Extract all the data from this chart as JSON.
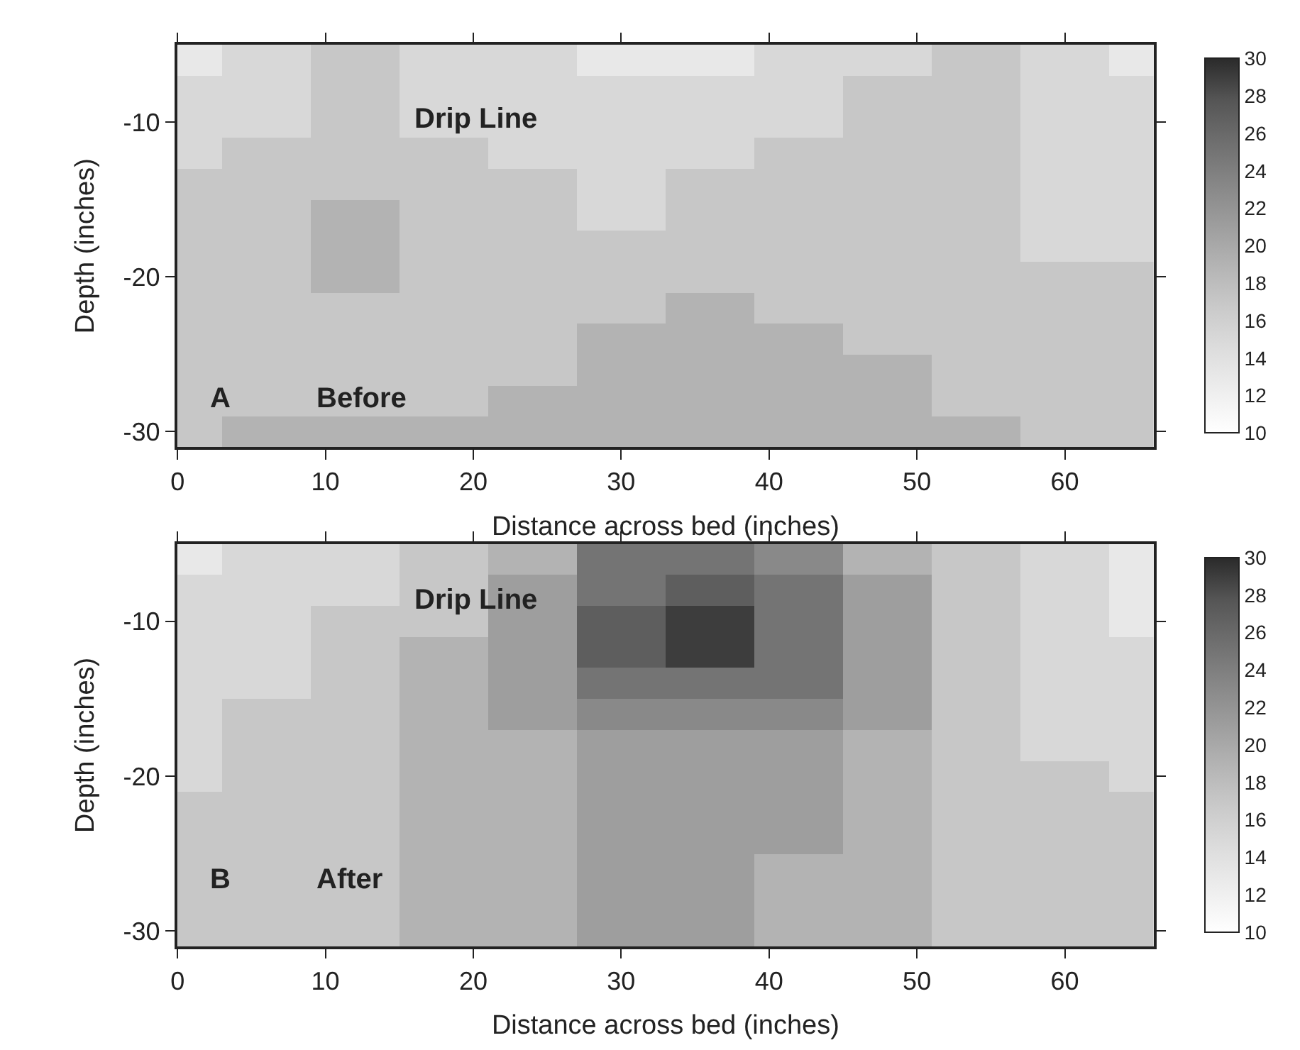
{
  "chart_data": [
    {
      "type": "heatmap",
      "xlabel": "Distance across bed (inches)",
      "ylabel": "Depth (inches)",
      "clim": [
        10,
        30
      ],
      "cticks": [
        10,
        12,
        14,
        16,
        18,
        20,
        22,
        24,
        26,
        28,
        30
      ],
      "colors": [
        "#ffffff",
        "#eeeeee",
        "#dddddd",
        "#cacaca",
        "#b4b4b4",
        "#9d9d9d",
        "#868686",
        "#6e6e6e",
        "#555555",
        "#2a2a2a"
      ],
      "x": [
        0,
        6,
        12,
        18,
        24,
        30,
        36,
        42,
        48,
        54,
        60,
        66
      ],
      "y_categories": [
        null,
        null,
        "-10",
        null,
        null,
        null,
        null,
        "-20",
        null,
        null,
        null,
        null,
        "-30"
      ],
      "cells": [
        [
          13,
          15,
          17,
          15,
          15,
          13,
          13,
          15,
          15,
          17,
          15,
          13
        ],
        [
          15,
          15,
          17,
          15,
          15,
          15,
          15,
          15,
          17,
          17,
          15,
          15
        ],
        [
          15,
          15,
          17,
          15,
          15,
          15,
          15,
          15,
          17,
          17,
          15,
          15
        ],
        [
          15,
          17,
          17,
          17,
          15,
          15,
          15,
          17,
          17,
          17,
          15,
          15
        ],
        [
          17,
          17,
          17,
          17,
          17,
          15,
          17,
          17,
          17,
          17,
          15,
          15
        ],
        [
          17,
          17,
          19,
          17,
          17,
          15,
          17,
          17,
          17,
          17,
          15,
          15
        ],
        [
          17,
          17,
          19,
          17,
          17,
          17,
          17,
          17,
          17,
          17,
          15,
          15
        ],
        [
          17,
          17,
          19,
          17,
          17,
          17,
          17,
          17,
          17,
          17,
          17,
          17
        ],
        [
          17,
          17,
          17,
          17,
          17,
          17,
          19,
          17,
          17,
          17,
          17,
          17
        ],
        [
          17,
          17,
          17,
          17,
          17,
          19,
          19,
          19,
          17,
          17,
          17,
          17
        ],
        [
          17,
          17,
          17,
          17,
          17,
          19,
          19,
          19,
          19,
          17,
          17,
          17
        ],
        [
          17,
          17,
          17,
          17,
          19,
          19,
          19,
          19,
          19,
          17,
          17,
          17
        ],
        [
          17,
          19,
          19,
          19,
          19,
          19,
          19,
          19,
          19,
          19,
          17,
          17
        ]
      ],
      "xlim": [
        0,
        66
      ],
      "xticks": [
        0,
        10,
        20,
        30,
        40,
        50,
        60
      ],
      "annotations": [
        "Drip Line",
        "A",
        "Before"
      ]
    },
    {
      "type": "heatmap",
      "xlabel": "Distance across bed (inches)",
      "ylabel": "Depth (inches)",
      "clim": [
        10,
        30
      ],
      "cticks": [
        10,
        12,
        14,
        16,
        18,
        20,
        22,
        24,
        26,
        28,
        30
      ],
      "colors": [
        "#ffffff",
        "#eeeeee",
        "#dddddd",
        "#cacaca",
        "#b4b4b4",
        "#9d9d9d",
        "#868686",
        "#6e6e6e",
        "#555555",
        "#2a2a2a"
      ],
      "x": [
        0,
        6,
        12,
        18,
        24,
        30,
        36,
        42,
        48,
        54,
        60,
        66
      ],
      "y_categories": [
        null,
        null,
        "-10",
        null,
        null,
        null,
        null,
        "-20",
        null,
        null,
        null,
        null,
        "-30"
      ],
      "cells": [
        [
          13,
          15,
          15,
          17,
          19,
          25,
          25,
          23,
          19,
          17,
          15,
          13
        ],
        [
          15,
          15,
          15,
          17,
          21,
          25,
          27,
          25,
          21,
          17,
          15,
          13
        ],
        [
          15,
          15,
          17,
          17,
          21,
          27,
          29,
          25,
          21,
          17,
          15,
          13
        ],
        [
          15,
          15,
          17,
          19,
          21,
          27,
          29,
          25,
          21,
          17,
          15,
          15
        ],
        [
          15,
          15,
          17,
          19,
          21,
          25,
          25,
          25,
          21,
          17,
          15,
          15
        ],
        [
          15,
          17,
          17,
          19,
          21,
          23,
          23,
          23,
          21,
          17,
          15,
          15
        ],
        [
          15,
          17,
          17,
          19,
          19,
          21,
          21,
          21,
          19,
          17,
          15,
          15
        ],
        [
          15,
          17,
          17,
          19,
          19,
          21,
          21,
          21,
          19,
          17,
          17,
          15
        ],
        [
          17,
          17,
          17,
          19,
          19,
          21,
          21,
          21,
          19,
          17,
          17,
          17
        ],
        [
          17,
          17,
          17,
          19,
          19,
          21,
          21,
          21,
          19,
          17,
          17,
          17
        ],
        [
          17,
          17,
          17,
          19,
          19,
          21,
          21,
          19,
          19,
          17,
          17,
          17
        ],
        [
          17,
          17,
          17,
          19,
          19,
          21,
          21,
          19,
          19,
          17,
          17,
          17
        ],
        [
          17,
          17,
          17,
          19,
          19,
          21,
          21,
          19,
          19,
          17,
          17,
          17
        ]
      ],
      "xlim": [
        0,
        66
      ],
      "xticks": [
        0,
        10,
        20,
        30,
        40,
        50,
        60
      ],
      "annotations": [
        "Drip Line",
        "B",
        "After"
      ]
    }
  ]
}
